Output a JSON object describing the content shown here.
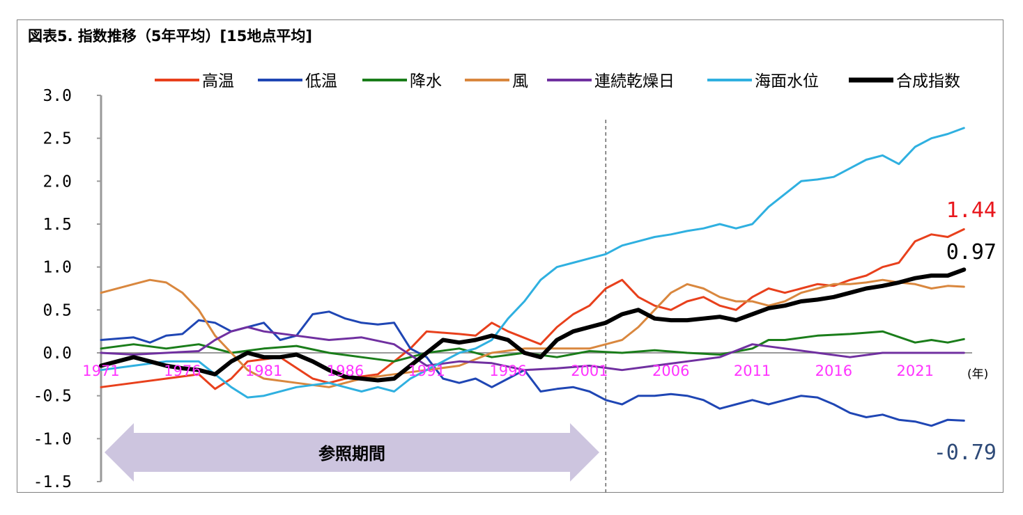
{
  "title": "図表5. 指数推移（5年平均）[15地点平均]",
  "chart_data": {
    "type": "line",
    "x_unit_label": "(年)",
    "ylim": [
      -1.5,
      3.0
    ],
    "y_ticks": [
      "3.0",
      "2.5",
      "2.0",
      "1.5",
      "1.0",
      "0.5",
      "0.0",
      "-0.5",
      "-1.0",
      "-1.5"
    ],
    "x_tick_labels": [
      "1971",
      "1976",
      "1981",
      "1986",
      "1991",
      "1996",
      "2001",
      "2006",
      "2011",
      "2016",
      "2021"
    ],
    "x_tick_years": [
      1971,
      1976,
      1981,
      1986,
      1991,
      1996,
      2001,
      2006,
      2011,
      2016,
      2021
    ],
    "xlim": [
      1971,
      2024.5
    ],
    "divider_year": 2002,
    "reference_period": {
      "label": "参照期間",
      "start": 1971,
      "end": 2002
    },
    "grid": false,
    "legend_position": "top",
    "series": [
      {
        "name": "高温",
        "color": "#e8401c",
        "width": 3,
        "x": [
          1971,
          1973,
          1975,
          1977,
          1978,
          1979,
          1980,
          1982,
          1984,
          1985,
          1986,
          1988,
          1989,
          1990,
          1991,
          1993,
          1994,
          1995,
          1996,
          1998,
          1999,
          2000,
          2001,
          2002,
          2003,
          2004,
          2005,
          2006,
          2007,
          2008,
          2009,
          2010,
          2011,
          2012,
          2013,
          2014,
          2015,
          2016,
          2017,
          2018,
          2019,
          2020,
          2021,
          2022,
          2023,
          2024
        ],
        "y": [
          -0.4,
          -0.35,
          -0.3,
          -0.25,
          -0.42,
          -0.3,
          -0.1,
          -0.05,
          -0.3,
          -0.35,
          -0.3,
          -0.25,
          -0.1,
          0.05,
          0.25,
          0.22,
          0.2,
          0.35,
          0.25,
          0.1,
          0.3,
          0.45,
          0.55,
          0.75,
          0.85,
          0.65,
          0.55,
          0.5,
          0.6,
          0.65,
          0.55,
          0.5,
          0.65,
          0.75,
          0.7,
          0.75,
          0.8,
          0.78,
          0.85,
          0.9,
          1.0,
          1.05,
          1.3,
          1.38,
          1.35,
          1.44
        ]
      },
      {
        "name": "低温",
        "color": "#1f46b4",
        "width": 3,
        "x": [
          1971,
          1973,
          1974,
          1975,
          1976,
          1977,
          1978,
          1979,
          1980,
          1981,
          1982,
          1983,
          1984,
          1985,
          1986,
          1987,
          1988,
          1989,
          1990,
          1991,
          1992,
          1993,
          1994,
          1995,
          1996,
          1997,
          1998,
          1999,
          2000,
          2001,
          2002,
          2003,
          2004,
          2005,
          2006,
          2007,
          2008,
          2009,
          2010,
          2011,
          2012,
          2013,
          2014,
          2015,
          2016,
          2017,
          2018,
          2019,
          2020,
          2021,
          2022,
          2023,
          2024
        ],
        "y": [
          0.15,
          0.18,
          0.12,
          0.2,
          0.22,
          0.38,
          0.35,
          0.25,
          0.3,
          0.35,
          0.15,
          0.2,
          0.45,
          0.48,
          0.4,
          0.35,
          0.33,
          0.35,
          0.05,
          -0.05,
          -0.3,
          -0.35,
          -0.3,
          -0.4,
          -0.3,
          -0.2,
          -0.45,
          -0.42,
          -0.4,
          -0.45,
          -0.55,
          -0.6,
          -0.5,
          -0.5,
          -0.48,
          -0.5,
          -0.55,
          -0.65,
          -0.6,
          -0.55,
          -0.6,
          -0.55,
          -0.5,
          -0.52,
          -0.6,
          -0.7,
          -0.75,
          -0.72,
          -0.78,
          -0.8,
          -0.85,
          -0.78,
          -0.79
        ]
      },
      {
        "name": "降水",
        "color": "#1a7d1a",
        "width": 3,
        "x": [
          1971,
          1973,
          1975,
          1977,
          1979,
          1981,
          1983,
          1985,
          1987,
          1989,
          1991,
          1993,
          1995,
          1997,
          1999,
          2001,
          2003,
          2005,
          2007,
          2009,
          2011,
          2012,
          2013,
          2015,
          2017,
          2019,
          2021,
          2022,
          2023,
          2024
        ],
        "y": [
          0.05,
          0.1,
          0.05,
          0.1,
          0.0,
          0.05,
          0.08,
          0.0,
          -0.05,
          -0.1,
          0.0,
          0.05,
          -0.05,
          0.0,
          -0.05,
          0.02,
          0.0,
          0.03,
          0.0,
          -0.02,
          0.05,
          0.15,
          0.15,
          0.2,
          0.22,
          0.25,
          0.12,
          0.15,
          0.12,
          0.16
        ]
      },
      {
        "name": "風",
        "color": "#d9873e",
        "width": 3,
        "x": [
          1971,
          1973,
          1974,
          1975,
          1976,
          1977,
          1978,
          1979,
          1980,
          1981,
          1983,
          1985,
          1987,
          1989,
          1991,
          1993,
          1995,
          1997,
          1999,
          2001,
          2002,
          2003,
          2004,
          2005,
          2006,
          2007,
          2008,
          2009,
          2010,
          2011,
          2012,
          2013,
          2014,
          2015,
          2016,
          2017,
          2018,
          2019,
          2020,
          2021,
          2022,
          2023,
          2024
        ],
        "y": [
          0.7,
          0.8,
          0.85,
          0.82,
          0.7,
          0.5,
          0.2,
          0.0,
          -0.2,
          -0.3,
          -0.35,
          -0.4,
          -0.3,
          -0.25,
          -0.2,
          -0.15,
          0.0,
          0.05,
          0.05,
          0.05,
          0.1,
          0.15,
          0.3,
          0.5,
          0.7,
          0.8,
          0.75,
          0.65,
          0.6,
          0.6,
          0.55,
          0.6,
          0.7,
          0.75,
          0.8,
          0.8,
          0.82,
          0.85,
          0.82,
          0.8,
          0.75,
          0.78,
          0.77
        ]
      },
      {
        "name": "連続乾燥日",
        "color": "#7030a0",
        "width": 3,
        "x": [
          1971,
          1973,
          1975,
          1977,
          1978,
          1979,
          1980,
          1981,
          1983,
          1985,
          1987,
          1989,
          1991,
          1993,
          1995,
          1997,
          1999,
          2001,
          2003,
          2005,
          2007,
          2009,
          2011,
          2013,
          2015,
          2017,
          2019,
          2021,
          2024
        ],
        "y": [
          0.0,
          -0.02,
          0.0,
          0.02,
          0.15,
          0.25,
          0.3,
          0.25,
          0.2,
          0.15,
          0.18,
          0.1,
          -0.15,
          -0.1,
          -0.12,
          -0.2,
          -0.18,
          -0.15,
          -0.2,
          -0.15,
          -0.1,
          -0.05,
          0.1,
          0.05,
          0.0,
          -0.05,
          0.0,
          0.0,
          0.0
        ]
      },
      {
        "name": "海面水位",
        "color": "#2fb0e0",
        "width": 3,
        "x": [
          1971,
          1973,
          1975,
          1977,
          1978,
          1979,
          1980,
          1981,
          1983,
          1985,
          1987,
          1988,
          1989,
          1990,
          1991,
          1992,
          1993,
          1994,
          1995,
          1996,
          1997,
          1998,
          1999,
          2000,
          2001,
          2002,
          2003,
          2004,
          2005,
          2006,
          2007,
          2008,
          2009,
          2010,
          2011,
          2012,
          2013,
          2014,
          2015,
          2016,
          2017,
          2018,
          2019,
          2020,
          2021,
          2022,
          2023,
          2024
        ],
        "y": [
          -0.2,
          -0.15,
          -0.1,
          -0.1,
          -0.25,
          -0.4,
          -0.52,
          -0.5,
          -0.4,
          -0.35,
          -0.45,
          -0.4,
          -0.45,
          -0.3,
          -0.2,
          -0.1,
          0.0,
          0.05,
          0.15,
          0.4,
          0.6,
          0.85,
          1.0,
          1.05,
          1.1,
          1.15,
          1.25,
          1.3,
          1.35,
          1.38,
          1.42,
          1.45,
          1.5,
          1.45,
          1.5,
          1.7,
          1.85,
          2.0,
          2.02,
          2.05,
          2.15,
          2.25,
          2.3,
          2.2,
          2.4,
          2.5,
          2.55,
          2.62
        ]
      },
      {
        "name": "合成指数",
        "color": "#000000",
        "width": 6,
        "x": [
          1971,
          1972,
          1973,
          1974,
          1975,
          1976,
          1977,
          1978,
          1979,
          1980,
          1981,
          1982,
          1983,
          1984,
          1985,
          1986,
          1987,
          1988,
          1989,
          1990,
          1991,
          1992,
          1993,
          1994,
          1995,
          1996,
          1997,
          1998,
          1999,
          2000,
          2001,
          2002,
          2003,
          2004,
          2005,
          2006,
          2007,
          2008,
          2009,
          2010,
          2011,
          2012,
          2013,
          2014,
          2015,
          2016,
          2017,
          2018,
          2019,
          2020,
          2021,
          2022,
          2023,
          2024
        ],
        "y": [
          -0.15,
          -0.1,
          -0.05,
          -0.1,
          -0.15,
          -0.18,
          -0.2,
          -0.25,
          -0.1,
          0.0,
          -0.05,
          -0.05,
          -0.02,
          -0.1,
          -0.2,
          -0.28,
          -0.3,
          -0.32,
          -0.3,
          -0.15,
          0.0,
          0.15,
          0.12,
          0.15,
          0.2,
          0.15,
          0.0,
          -0.05,
          0.15,
          0.25,
          0.3,
          0.35,
          0.45,
          0.5,
          0.4,
          0.38,
          0.38,
          0.4,
          0.42,
          0.38,
          0.45,
          0.52,
          0.55,
          0.6,
          0.62,
          0.65,
          0.7,
          0.75,
          0.78,
          0.82,
          0.87,
          0.9,
          0.9,
          0.97
        ]
      }
    ],
    "end_labels": [
      {
        "text": "1.44",
        "color": "#e8161c"
      },
      {
        "text": "0.97",
        "color": "#000000"
      },
      {
        "text": "-0.79",
        "color": "#2e4a78"
      }
    ]
  }
}
